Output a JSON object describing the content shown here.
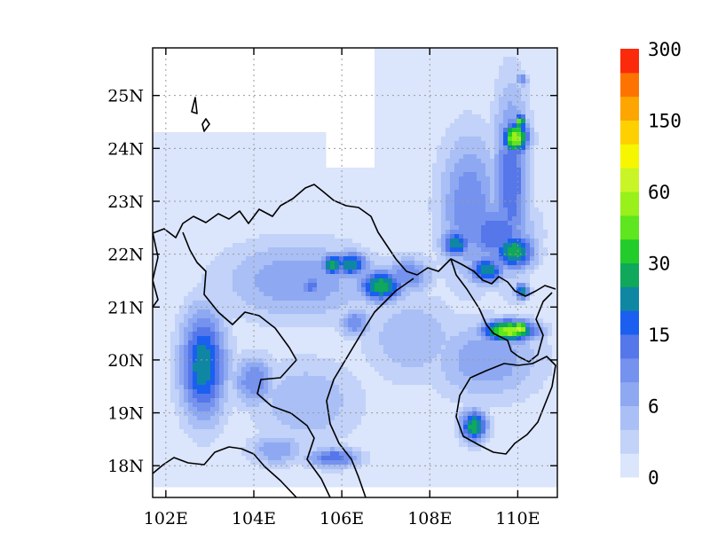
{
  "chart_data": {
    "type": "heatmap",
    "title": "",
    "xlabel": "",
    "ylabel": "",
    "xlim": [
      101.7,
      110.9
    ],
    "ylim": [
      17.4,
      25.9
    ],
    "grid": true,
    "x_ticks": [
      {
        "value": 102,
        "label": "102E"
      },
      {
        "value": 104,
        "label": "104E"
      },
      {
        "value": 106,
        "label": "106E"
      },
      {
        "value": 108,
        "label": "108E"
      },
      {
        "value": 110,
        "label": "110E"
      }
    ],
    "y_ticks": [
      {
        "value": 18,
        "label": "18N"
      },
      {
        "value": 19,
        "label": "19N"
      },
      {
        "value": 20,
        "label": "20N"
      },
      {
        "value": 21,
        "label": "21N"
      },
      {
        "value": 22,
        "label": "22N"
      },
      {
        "value": 23,
        "label": "23N"
      },
      {
        "value": 24,
        "label": "24N"
      },
      {
        "value": 25,
        "label": "25N"
      }
    ],
    "colorbar": {
      "placement": "right",
      "colors": [
        "#dbe5fb",
        "#c2d2f8",
        "#a9bff5",
        "#8ea9f1",
        "#7592ee",
        "#5577e9",
        "#1a5ff0",
        "#0f87a3",
        "#10a85a",
        "#22cc2a",
        "#5ee61e",
        "#99f01a",
        "#c9f526",
        "#f6f600",
        "#fed000",
        "#fda500",
        "#fd7300",
        "#fb2a0a"
      ],
      "labels": [
        "0",
        "6",
        "15",
        "30",
        "60",
        "150",
        "300"
      ]
    },
    "blobs": [
      {
        "lon": 102.85,
        "lat": 19.9,
        "sx": 0.38,
        "sy": 0.75,
        "v": 8
      },
      {
        "lon": 102.8,
        "lat": 20.2,
        "sx": 0.25,
        "sy": 0.45,
        "v": 6
      },
      {
        "lon": 102.95,
        "lat": 20.35,
        "sx": 0.12,
        "sy": 0.12,
        "v": 4
      },
      {
        "lon": 104.0,
        "lat": 19.6,
        "sx": 0.35,
        "sy": 0.35,
        "v": 5
      },
      {
        "lon": 104.5,
        "lat": 18.3,
        "sx": 0.45,
        "sy": 0.22,
        "v": 4
      },
      {
        "lon": 105.8,
        "lat": 18.15,
        "sx": 0.45,
        "sy": 0.14,
        "v": 6
      },
      {
        "lon": 105.2,
        "lat": 19.2,
        "sx": 0.9,
        "sy": 0.6,
        "v": 3
      },
      {
        "lon": 105.0,
        "lat": 21.5,
        "sx": 1.3,
        "sy": 0.55,
        "v": 4
      },
      {
        "lon": 105.8,
        "lat": 21.8,
        "sx": 0.2,
        "sy": 0.15,
        "v": 9
      },
      {
        "lon": 105.3,
        "lat": 21.4,
        "sx": 0.18,
        "sy": 0.15,
        "v": 6
      },
      {
        "lon": 106.2,
        "lat": 21.8,
        "sx": 0.3,
        "sy": 0.18,
        "v": 8
      },
      {
        "lon": 106.9,
        "lat": 21.4,
        "sx": 0.38,
        "sy": 0.22,
        "v": 9
      },
      {
        "lon": 106.3,
        "lat": 20.7,
        "sx": 0.25,
        "sy": 0.2,
        "v": 5
      },
      {
        "lon": 107.5,
        "lat": 21.6,
        "sx": 0.4,
        "sy": 0.25,
        "v": 5
      },
      {
        "lon": 107.6,
        "lat": 20.4,
        "sx": 0.8,
        "sy": 0.6,
        "v": 3
      },
      {
        "lon": 108.9,
        "lat": 22.9,
        "sx": 0.5,
        "sy": 1.0,
        "v": 5
      },
      {
        "lon": 108.6,
        "lat": 22.2,
        "sx": 0.25,
        "sy": 0.2,
        "v": 8
      },
      {
        "lon": 109.85,
        "lat": 23.4,
        "sx": 0.3,
        "sy": 1.25,
        "v": 6
      },
      {
        "lon": 109.95,
        "lat": 24.2,
        "sx": 0.22,
        "sy": 0.22,
        "v": 12
      },
      {
        "lon": 110.05,
        "lat": 24.5,
        "sx": 0.1,
        "sy": 0.1,
        "v": 11
      },
      {
        "lon": 109.5,
        "lat": 22.4,
        "sx": 0.6,
        "sy": 0.45,
        "v": 6
      },
      {
        "lon": 109.9,
        "lat": 22.05,
        "sx": 0.35,
        "sy": 0.25,
        "v": 9
      },
      {
        "lon": 109.3,
        "lat": 21.7,
        "sx": 0.3,
        "sy": 0.2,
        "v": 8
      },
      {
        "lon": 110.1,
        "lat": 21.3,
        "sx": 0.12,
        "sy": 0.12,
        "v": 8
      },
      {
        "lon": 109.8,
        "lat": 20.55,
        "sx": 0.45,
        "sy": 0.15,
        "v": 12
      },
      {
        "lon": 110.05,
        "lat": 20.6,
        "sx": 0.15,
        "sy": 0.1,
        "v": 13
      },
      {
        "lon": 109.3,
        "lat": 20.0,
        "sx": 0.9,
        "sy": 0.55,
        "v": 4
      },
      {
        "lon": 109.0,
        "lat": 18.75,
        "sx": 0.22,
        "sy": 0.22,
        "v": 9
      },
      {
        "lon": 110.1,
        "lat": 25.3,
        "sx": 0.1,
        "sy": 0.1,
        "v": 5
      }
    ]
  }
}
